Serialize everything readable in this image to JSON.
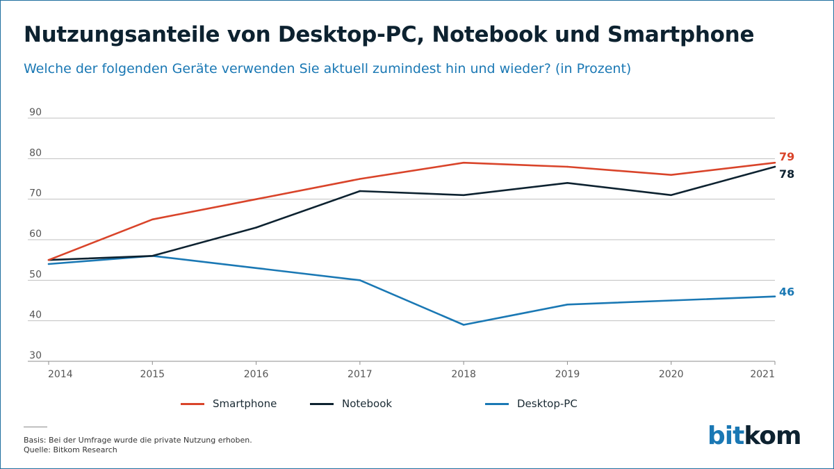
{
  "header": {
    "title": "Nutzungsanteile von Desktop-PC, Notebook und Smartphone",
    "subtitle": "Welche der folgenden Geräte verwenden Sie aktuell zumindest hin und wieder? (in Prozent)"
  },
  "colors": {
    "smartphone": "#d9442a",
    "notebook": "#0d2230",
    "desktop": "#1a78b4",
    "grid": "#bfbfbf",
    "axis_text": "#555555"
  },
  "chart_data": {
    "type": "line",
    "title": "Nutzungsanteile von Desktop-PC, Notebook und Smartphone",
    "xlabel": "",
    "ylabel": "",
    "x": [
      "2014",
      "2015",
      "2016",
      "2017",
      "2018",
      "2019",
      "2020",
      "2021"
    ],
    "ylim": [
      30,
      90
    ],
    "yticks": [
      30,
      40,
      50,
      60,
      70,
      80,
      90
    ],
    "grid": true,
    "legend_position": "bottom",
    "series": [
      {
        "name": "Smartphone",
        "color": "#d9442a",
        "values": [
          55,
          65,
          70,
          75,
          79,
          78,
          76,
          79
        ],
        "end_label": "79"
      },
      {
        "name": "Notebook",
        "color": "#0d2230",
        "values": [
          55,
          56,
          63,
          72,
          71,
          74,
          71,
          78
        ],
        "end_label": "78"
      },
      {
        "name": "Desktop-PC",
        "color": "#1a78b4",
        "values": [
          54,
          56,
          53,
          50,
          39,
          44,
          45,
          46
        ],
        "end_label": "46"
      }
    ]
  },
  "legend": [
    {
      "label": "Smartphone",
      "color": "#d9442a"
    },
    {
      "label": "Notebook",
      "color": "#0d2230"
    },
    {
      "label": "Desktop-PC",
      "color": "#1a78b4"
    }
  ],
  "footer": {
    "basis": "Basis: Bei der Umfrage wurde die private Nutzung erhoben.",
    "quelle": "Quelle: Bitkom Research",
    "logo_bit": "bit",
    "logo_kom": "kom"
  }
}
